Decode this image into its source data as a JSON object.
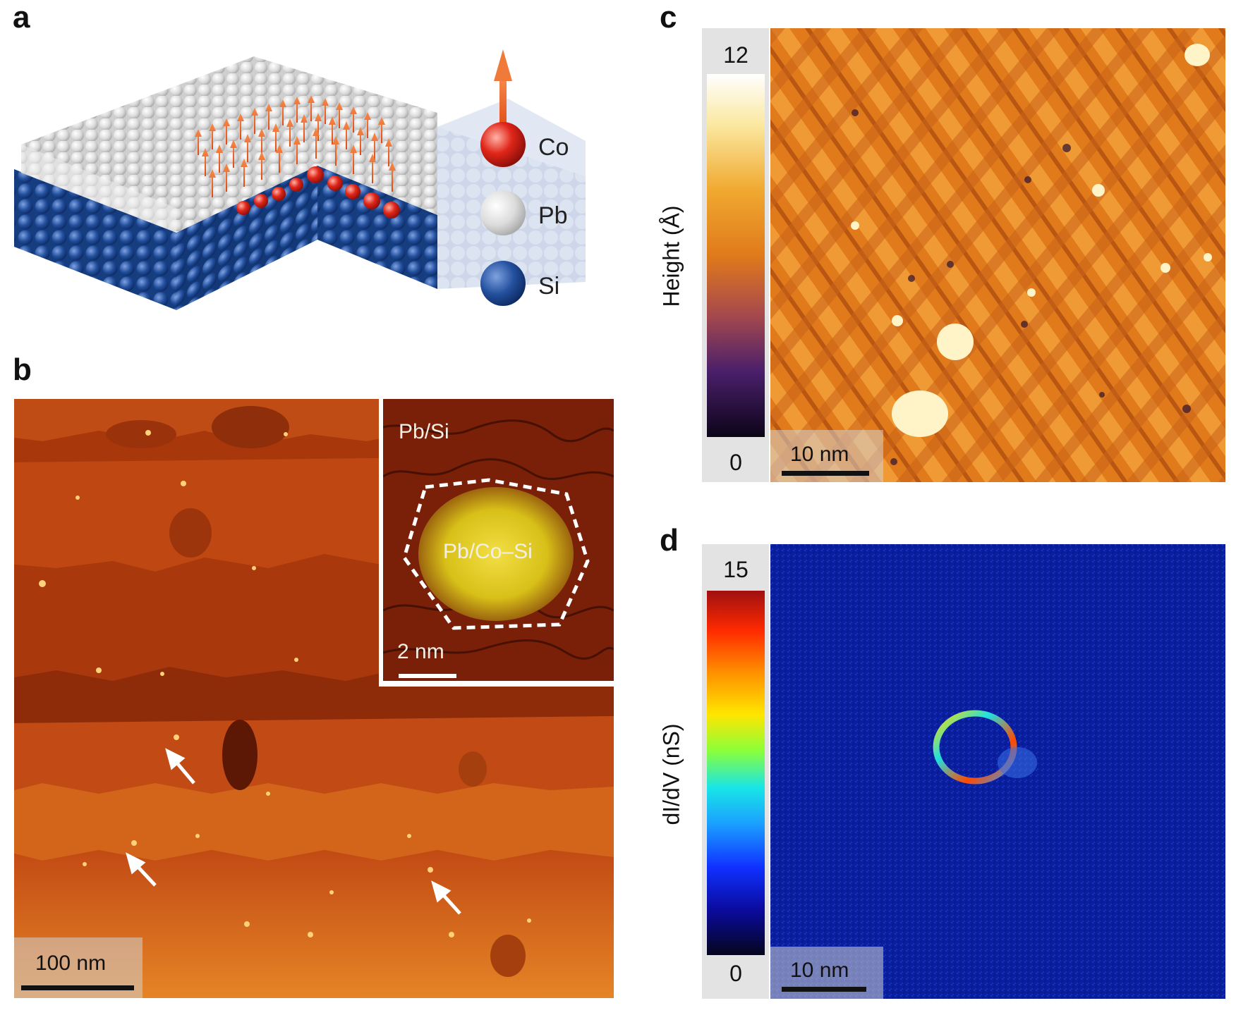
{
  "panels": {
    "a": {
      "letter": "a",
      "legend": [
        {
          "label": "Co",
          "color": "#d9261c"
        },
        {
          "label": "Pb",
          "color": "#e8e8e8"
        },
        {
          "label": "Si",
          "color": "#1f4f9b"
        }
      ]
    },
    "b": {
      "letter": "b",
      "scalebar": "100 nm",
      "inset": {
        "label_top": "Pb/Si",
        "label_island": "Pb/Co–Si",
        "scalebar": "2 nm"
      }
    },
    "c": {
      "letter": "c",
      "colorbar": {
        "label": "Height (Å)",
        "max": "12",
        "min": "0"
      },
      "scalebar": "10 nm"
    },
    "d": {
      "letter": "d",
      "colorbar": {
        "label": "dI/dV (nS)",
        "max": "15",
        "min": "0"
      },
      "scalebar": "10 nm"
    }
  },
  "colors": {
    "co_arrow": "#f06a2c",
    "si_blue": "#1f4f9b",
    "stm_orange": "#e07a1a",
    "map_blue": "#0a1f9e"
  }
}
